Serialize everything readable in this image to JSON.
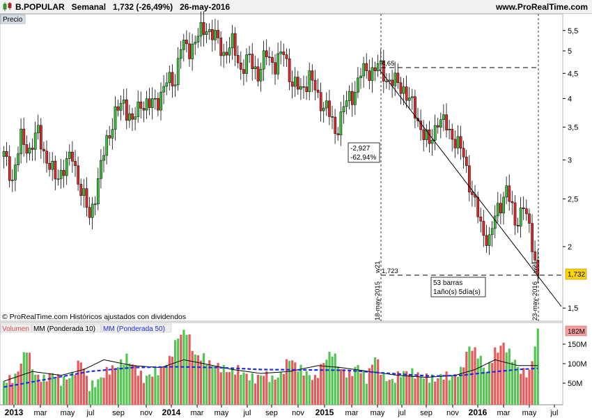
{
  "header": {
    "symbol_line": "B.POPULAR   Semanal   1,732 (-26,49%)   26-may-2016",
    "site": "www.ProRealTime.com"
  },
  "price_panel": {
    "tab_label": "Precio",
    "copyright": "© ProRealTime.com  Históricos ajustados con dividendos",
    "last_price_badge": "1,732",
    "colors": {
      "up": "#3cbf3c",
      "down": "#e02828",
      "badge_bg": "#ffd400"
    }
  },
  "annotations": {
    "high_value": "4,65",
    "low_value": "1,723",
    "change_abs": "-2,927",
    "change_pct": "-62,94%",
    "bars_text": "53 barras",
    "duration_text": "1año(s) 5día(s)",
    "start_date": "18-may-2015",
    "end_date": "23-may-2016",
    "start_tag": "w21",
    "end_tag": "w21"
  },
  "volume_panel": {
    "legend_volume": "Volumen",
    "legend_mm10": "MM (Ponderada 10)",
    "legend_mm50": "MM (Ponderada 50)",
    "last_volume_badge": "182M",
    "colors": {
      "mm10": "#000000",
      "mm50": "#1a2ee0"
    }
  },
  "chart_data": {
    "type": "candlestick",
    "price_axis": {
      "ticks": [
        "5,5",
        "5",
        "4,5",
        "4",
        "3,5",
        "3",
        "2,5",
        "2",
        "1,5"
      ],
      "values": [
        5.5,
        5,
        4.5,
        4,
        3.5,
        3,
        2.5,
        2,
        1.5
      ],
      "scale": "log"
    },
    "volume_axis": {
      "ticks": [
        "150M",
        "100M",
        "50M"
      ],
      "values": [
        150,
        100,
        50
      ]
    },
    "time_axis": {
      "labels": [
        "2013",
        "mar",
        "may",
        "jul",
        "sep",
        "nov",
        "2014",
        "mar",
        "may",
        "jul",
        "sep",
        "nov",
        "2015",
        "mar",
        "may",
        "jul",
        "sep",
        "nov",
        "2016",
        "mar",
        "may",
        "jul"
      ],
      "bold": [
        "2013",
        "2014",
        "2015",
        "2016"
      ]
    },
    "close_path": [
      [
        0,
        3.05
      ],
      [
        3,
        2.75
      ],
      [
        6,
        3.3
      ],
      [
        9,
        3.15
      ],
      [
        12,
        3.4
      ],
      [
        15,
        3.0
      ],
      [
        18,
        2.75
      ],
      [
        21,
        2.9
      ],
      [
        24,
        3.05
      ],
      [
        27,
        2.6
      ],
      [
        30,
        2.3
      ],
      [
        33,
        2.7
      ],
      [
        36,
        3.3
      ],
      [
        39,
        3.7
      ],
      [
        42,
        3.95
      ],
      [
        45,
        3.55
      ],
      [
        48,
        3.95
      ],
      [
        51,
        3.85
      ],
      [
        54,
        4.0
      ],
      [
        57,
        4.3
      ],
      [
        60,
        4.4
      ],
      [
        62,
        5.1
      ],
      [
        65,
        5.05
      ],
      [
        68,
        5.35
      ],
      [
        71,
        5.6
      ],
      [
        74,
        5.3
      ],
      [
        77,
        4.95
      ],
      [
        80,
        5.15
      ],
      [
        83,
        4.6
      ],
      [
        86,
        4.8
      ],
      [
        89,
        4.5
      ],
      [
        92,
        4.9
      ],
      [
        95,
        4.7
      ],
      [
        98,
        4.95
      ],
      [
        101,
        4.3
      ],
      [
        104,
        4.15
      ],
      [
        107,
        4.45
      ],
      [
        110,
        4.0
      ],
      [
        113,
        3.85
      ],
      [
        116,
        3.4
      ],
      [
        119,
        3.85
      ],
      [
        122,
        4.05
      ],
      [
        125,
        4.5
      ],
      [
        128,
        4.55
      ],
      [
        131,
        4.65
      ],
      [
        134,
        4.4
      ],
      [
        137,
        4.3
      ],
      [
        140,
        4.2
      ],
      [
        143,
        3.85
      ],
      [
        146,
        3.5
      ],
      [
        149,
        3.2
      ],
      [
        152,
        3.65
      ],
      [
        155,
        3.5
      ],
      [
        158,
        3.3
      ],
      [
        161,
        3.05
      ],
      [
        164,
        2.55
      ],
      [
        167,
        2.2
      ],
      [
        170,
        2.05
      ],
      [
        173,
        2.4
      ],
      [
        176,
        2.6
      ],
      [
        179,
        2.25
      ],
      [
        182,
        2.4
      ],
      [
        185,
        2.05
      ],
      [
        187,
        1.73
      ]
    ],
    "volume_bars": [
      [
        0,
        55
      ],
      [
        4,
        65
      ],
      [
        8,
        140
      ],
      [
        11,
        70
      ],
      [
        14,
        60
      ],
      [
        17,
        75
      ],
      [
        20,
        55
      ],
      [
        24,
        70
      ],
      [
        27,
        110
      ],
      [
        30,
        40
      ],
      [
        33,
        55
      ],
      [
        36,
        80
      ],
      [
        40,
        95
      ],
      [
        43,
        115
      ],
      [
        46,
        90
      ],
      [
        49,
        60
      ],
      [
        52,
        75
      ],
      [
        55,
        85
      ],
      [
        58,
        110
      ],
      [
        61,
        170
      ],
      [
        64,
        185
      ],
      [
        67,
        120
      ],
      [
        70,
        115
      ],
      [
        73,
        95
      ],
      [
        76,
        90
      ],
      [
        79,
        80
      ],
      [
        82,
        85
      ],
      [
        85,
        70
      ],
      [
        88,
        60
      ],
      [
        91,
        75
      ],
      [
        94,
        60
      ],
      [
        97,
        70
      ],
      [
        100,
        115
      ],
      [
        103,
        90
      ],
      [
        106,
        75
      ],
      [
        109,
        60
      ],
      [
        112,
        105
      ],
      [
        115,
        130
      ],
      [
        118,
        85
      ],
      [
        121,
        70
      ],
      [
        124,
        95
      ],
      [
        127,
        60
      ],
      [
        130,
        120
      ],
      [
        133,
        65
      ],
      [
        136,
        55
      ],
      [
        139,
        75
      ],
      [
        142,
        80
      ],
      [
        145,
        70
      ],
      [
        148,
        65
      ],
      [
        151,
        60
      ],
      [
        154,
        70
      ],
      [
        157,
        65
      ],
      [
        160,
        80
      ],
      [
        163,
        145
      ],
      [
        166,
        125
      ],
      [
        169,
        80
      ],
      [
        172,
        130
      ],
      [
        175,
        150
      ],
      [
        178,
        115
      ],
      [
        181,
        80
      ],
      [
        184,
        75
      ],
      [
        187,
        182
      ]
    ],
    "mm10": [
      [
        0,
        55
      ],
      [
        10,
        80
      ],
      [
        20,
        70
      ],
      [
        28,
        85
      ],
      [
        35,
        110
      ],
      [
        45,
        95
      ],
      [
        55,
        90
      ],
      [
        63,
        110
      ],
      [
        70,
        100
      ],
      [
        80,
        85
      ],
      [
        90,
        75
      ],
      [
        100,
        80
      ],
      [
        110,
        95
      ],
      [
        118,
        90
      ],
      [
        128,
        80
      ],
      [
        138,
        70
      ],
      [
        148,
        65
      ],
      [
        158,
        70
      ],
      [
        165,
        85
      ],
      [
        172,
        110
      ],
      [
        180,
        95
      ],
      [
        187,
        95
      ]
    ],
    "mm50": [
      [
        0,
        40
      ],
      [
        15,
        60
      ],
      [
        30,
        80
      ],
      [
        45,
        90
      ],
      [
        60,
        92
      ],
      [
        75,
        90
      ],
      [
        90,
        85
      ],
      [
        105,
        84
      ],
      [
        120,
        83
      ],
      [
        135,
        75
      ],
      [
        150,
        68
      ],
      [
        160,
        70
      ],
      [
        170,
        78
      ],
      [
        180,
        85
      ],
      [
        187,
        88
      ]
    ]
  }
}
